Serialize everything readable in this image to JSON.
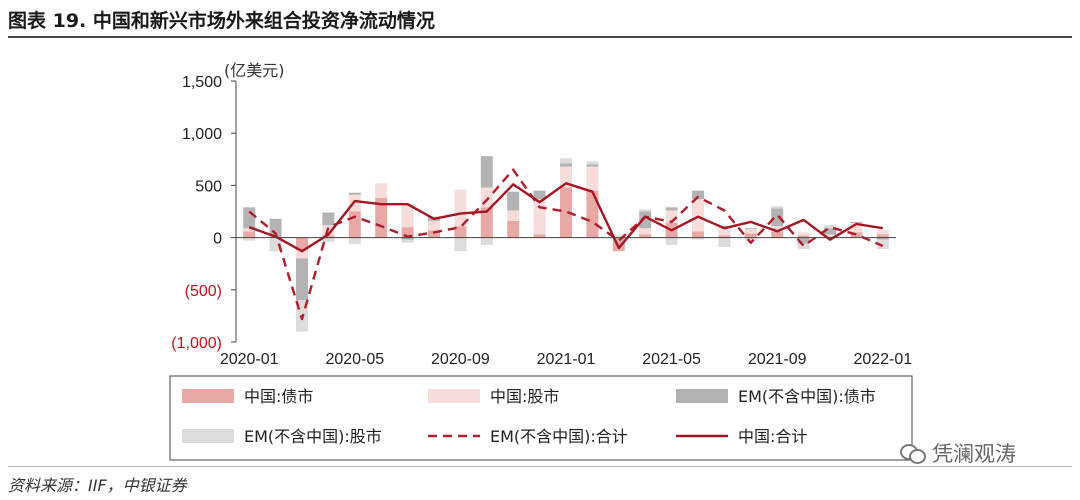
{
  "header": {
    "title": "图表 19. 中国和新兴市场外来组合投资净流动情况"
  },
  "footer": {
    "source": "资料来源：IIF，中银证券",
    "watermark": "凭澜观涛"
  },
  "chart_data": {
    "type": "bar",
    "unit_label": "(亿美元)",
    "y_ticks": [
      "1,500",
      "1,000",
      "500",
      "0",
      "(500)",
      "(1,000)"
    ],
    "y_tick_values": [
      1500,
      1000,
      500,
      0,
      -500,
      -1000
    ],
    "ylim": [
      -1000,
      1500
    ],
    "categories": [
      "2020-01",
      "2020-02",
      "2020-03",
      "2020-04",
      "2020-05",
      "2020-06",
      "2020-07",
      "2020-08",
      "2020-09",
      "2020-10",
      "2020-11",
      "2020-12",
      "2021-01",
      "2021-02",
      "2021-03",
      "2021-04",
      "2021-05",
      "2021-06",
      "2021-07",
      "2021-08",
      "2021-09",
      "2021-10",
      "2021-11",
      "2021-12",
      "2022-01"
    ],
    "x_tick_labels": [
      "2020-01",
      "2020-05",
      "2020-09",
      "2021-01",
      "2021-05",
      "2021-09",
      "2022-01"
    ],
    "x_tick_index": [
      0,
      4,
      8,
      12,
      16,
      20,
      24
    ],
    "series": [
      {
        "name": "中国:债市",
        "kind": "bar",
        "color": "#e8a8a6",
        "values": [
          60,
          10,
          -120,
          20,
          250,
          380,
          100,
          70,
          110,
          290,
          160,
          30,
          480,
          450,
          -130,
          30,
          140,
          60,
          20,
          40,
          60,
          20,
          10,
          50,
          30
        ]
      },
      {
        "name": "中国:股市",
        "kind": "bar",
        "color": "#f6dcdb",
        "values": [
          30,
          -10,
          -80,
          100,
          160,
          140,
          220,
          90,
          350,
          190,
          100,
          340,
          200,
          230,
          30,
          60,
          120,
          310,
          80,
          40,
          50,
          30,
          20,
          90,
          40
        ]
      },
      {
        "name": "EM(不含中国):债市",
        "kind": "bar",
        "color": "#b3b3b3",
        "values": [
          200,
          170,
          -400,
          120,
          20,
          0,
          -20,
          40,
          0,
          300,
          180,
          80,
          30,
          20,
          0,
          160,
          30,
          80,
          10,
          10,
          170,
          -60,
          60,
          10,
          -20
        ]
      },
      {
        "name": "EM(不含中国):股市",
        "kind": "bar",
        "color": "#dcdcdc",
        "values": [
          -30,
          -120,
          -300,
          -40,
          -60,
          0,
          -30,
          0,
          -130,
          -70,
          0,
          0,
          50,
          30,
          0,
          20,
          -70,
          -20,
          -90,
          -30,
          20,
          -50,
          30,
          0,
          -90
        ]
      },
      {
        "name": "EM(不含中国):合计",
        "kind": "dashed-line",
        "color": "#b01d2c",
        "values": [
          250,
          40,
          -780,
          100,
          200,
          110,
          10,
          50,
          100,
          360,
          650,
          290,
          250,
          150,
          -30,
          200,
          150,
          390,
          260,
          -50,
          220,
          -80,
          100,
          30,
          -80
        ]
      },
      {
        "name": "中国:合计",
        "kind": "line",
        "color": "#a51625",
        "values": [
          100,
          10,
          -130,
          30,
          350,
          320,
          320,
          180,
          230,
          250,
          510,
          340,
          520,
          440,
          -100,
          200,
          70,
          200,
          90,
          150,
          60,
          170,
          -20,
          130,
          90
        ]
      }
    ],
    "legend_placement": "bottom",
    "grid": false
  }
}
